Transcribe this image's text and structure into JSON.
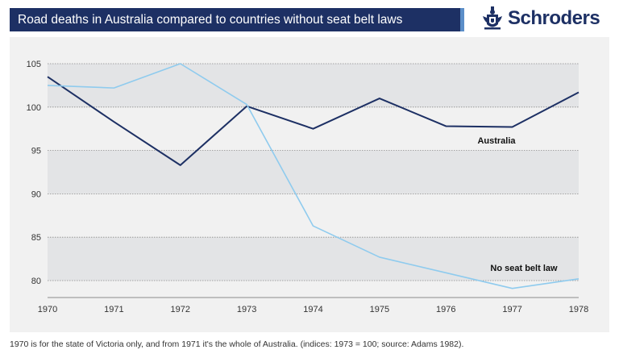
{
  "header": {
    "title": "Road deaths in Australia compared to countries without seat belt laws",
    "brand": "Schroders",
    "title_bar_color": "#1d3064",
    "accent_color": "#5b8ec8",
    "logo_icon": "crest-icon"
  },
  "footnote": "1970 is for the state of Victoria only, and from 1971 it's the whole of Australia. (indices: 1973 = 100; source: Adams 1982).",
  "chart_data": {
    "type": "line",
    "title": "Road deaths in Australia compared to countries without seat belt laws",
    "xlabel": "",
    "ylabel": "",
    "x": [
      1970,
      1971,
      1972,
      1973,
      1974,
      1975,
      1976,
      1977,
      1978
    ],
    "x_tick_labels": [
      "1970",
      "1971",
      "1972",
      "1973",
      "1974",
      "1975",
      "1976",
      "1977",
      "1978"
    ],
    "y_ticks": [
      80,
      85,
      90,
      95,
      100,
      105
    ],
    "y_tick_labels": [
      "80",
      "85",
      "90",
      "95",
      "100",
      "105"
    ],
    "ylim": [
      78,
      106
    ],
    "grid": true,
    "shaded_bands": [
      [
        80,
        85
      ],
      [
        90,
        95
      ],
      [
        100,
        105
      ]
    ],
    "series": [
      {
        "name": "Australia",
        "color": "#1d3064",
        "values": [
          103.5,
          98.3,
          93.3,
          100.1,
          97.5,
          101.0,
          97.8,
          97.7,
          101.7
        ]
      },
      {
        "name": "No seat belt law",
        "color": "#8fcbee",
        "values": [
          102.5,
          102.2,
          105.0,
          100.3,
          86.3,
          82.7,
          80.9,
          79.1,
          80.2
        ]
      }
    ]
  }
}
